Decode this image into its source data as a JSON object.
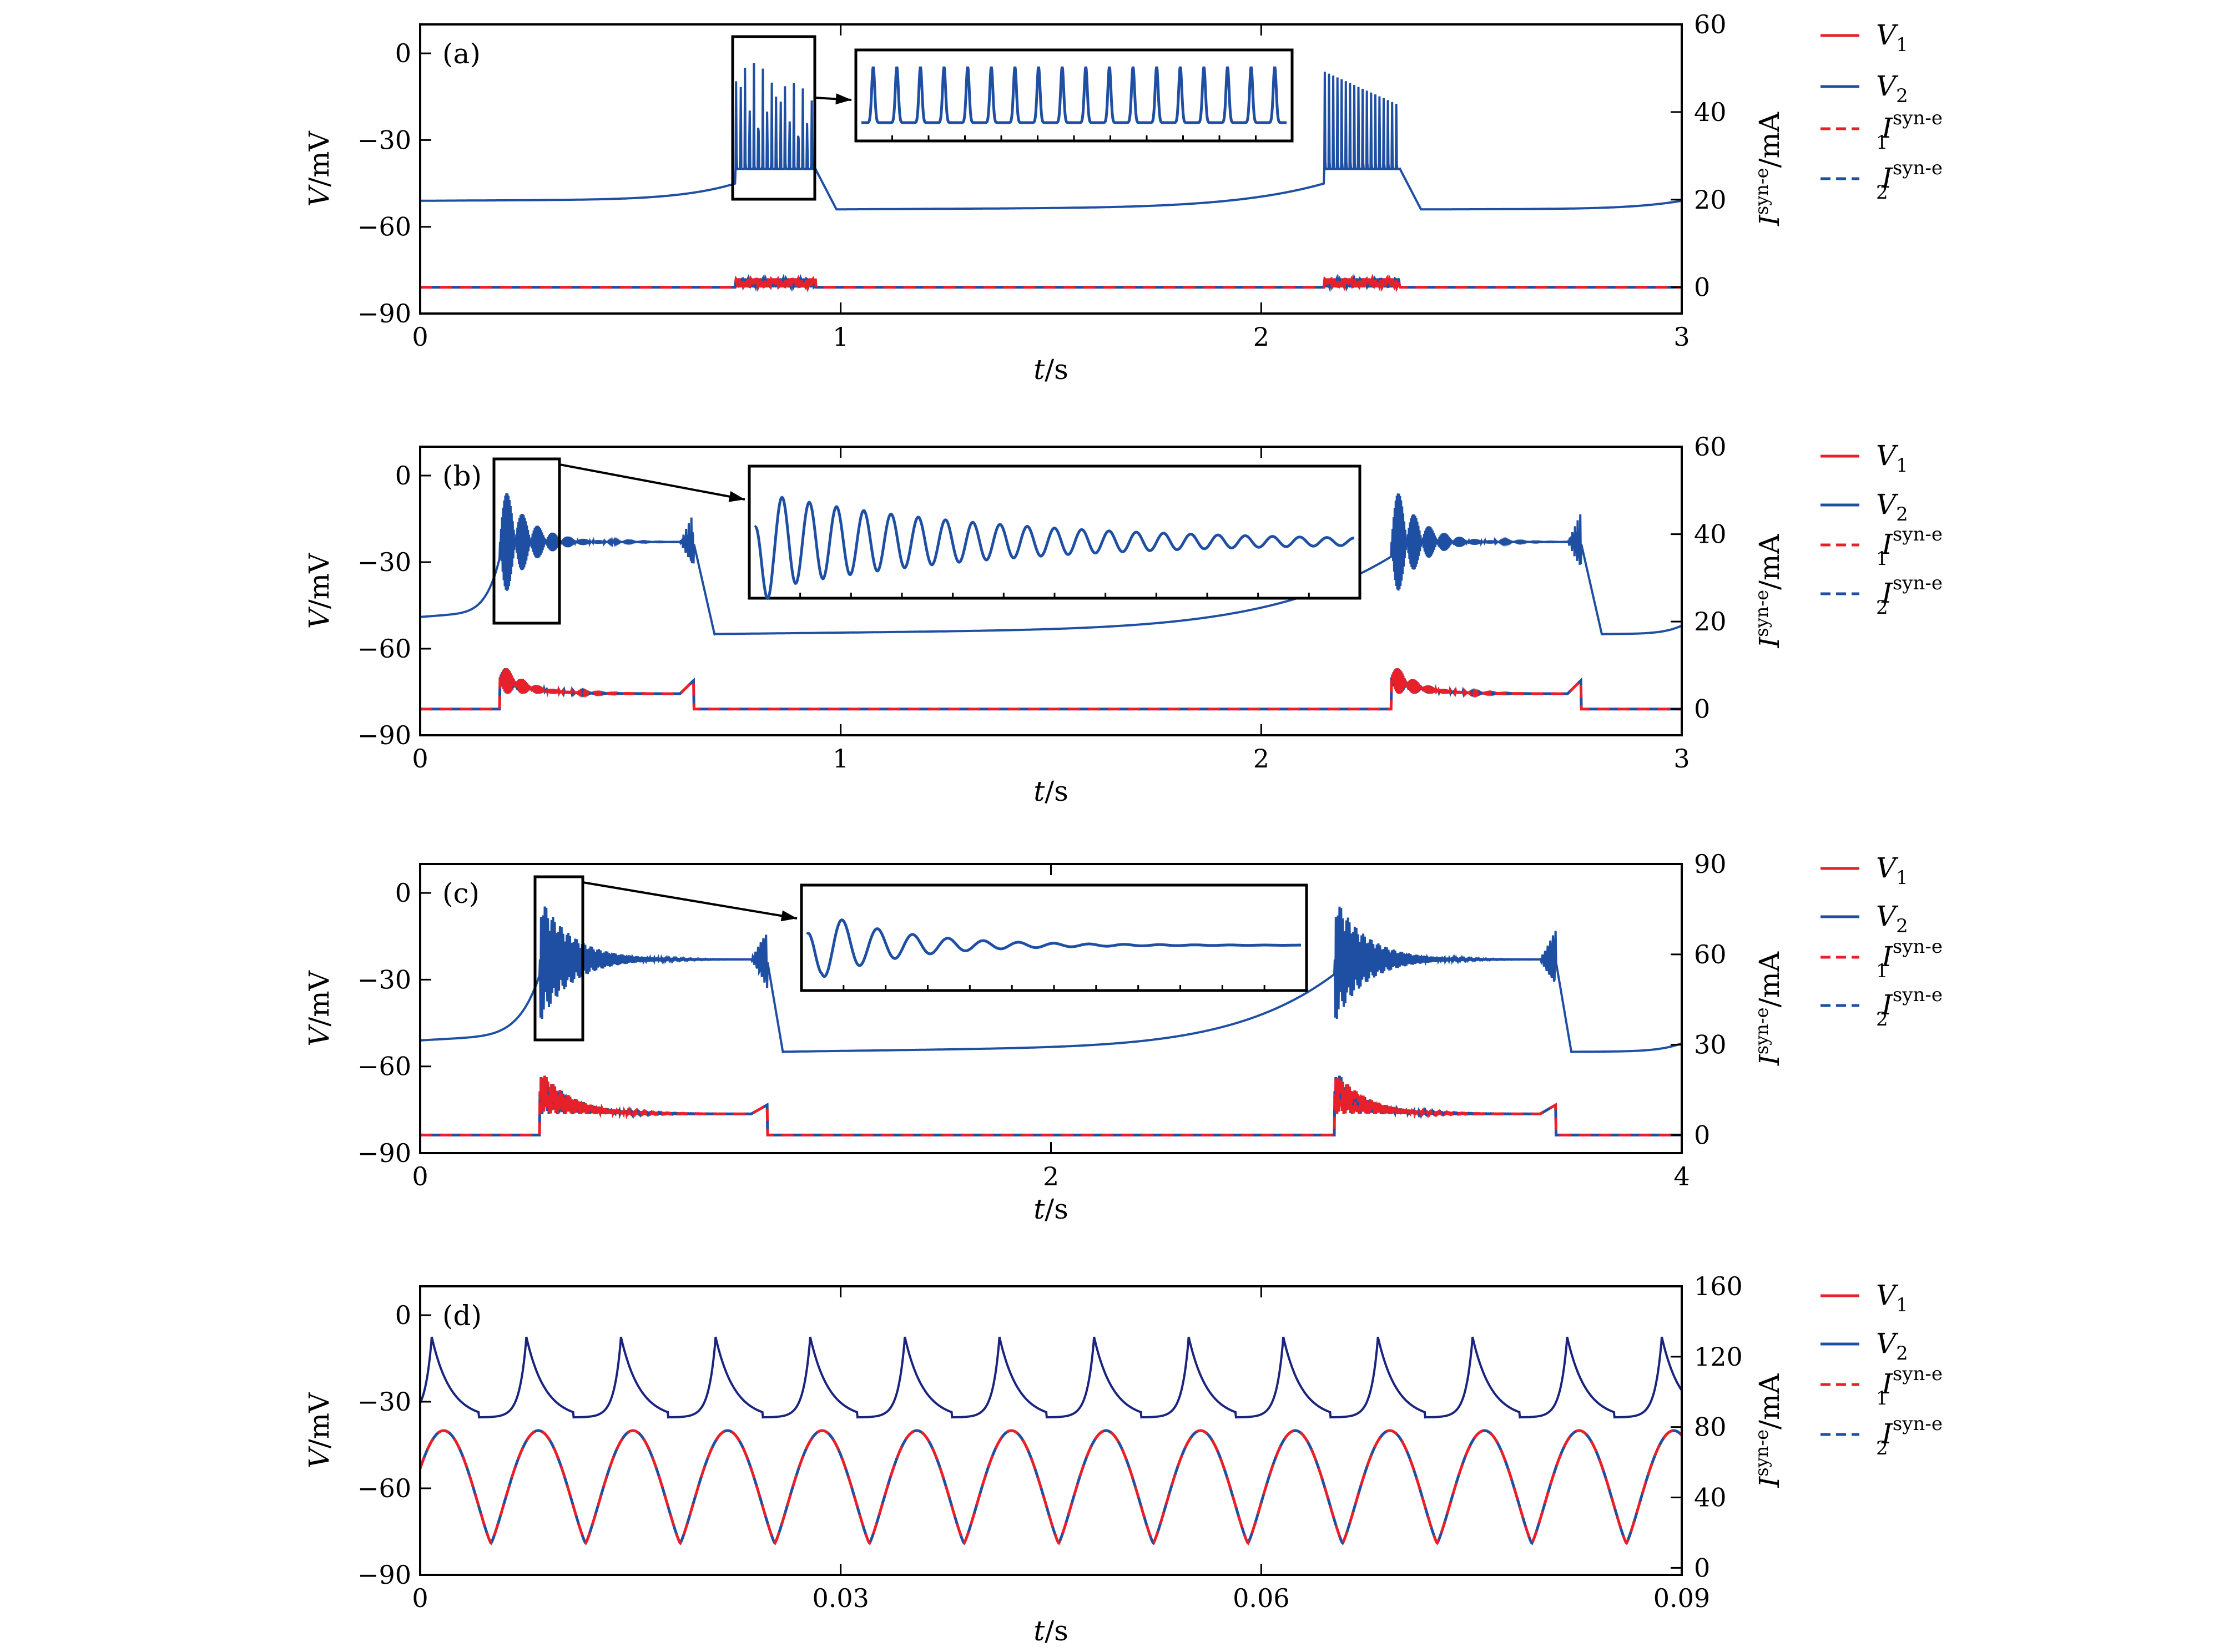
{
  "colors": {
    "v1": "#e8202a",
    "v2": "#1f4fa3",
    "v2_dark": "#1a237e",
    "i1": "#e8202a",
    "i2": "#1f4fa3"
  },
  "legend": [
    {
      "base": "V",
      "sub": "1",
      "sup": "",
      "style": "solid",
      "color_key": "v1"
    },
    {
      "base": "V",
      "sub": "2",
      "sup": "",
      "style": "solid",
      "color_key": "v2"
    },
    {
      "base": "I",
      "sub": "1",
      "sup": "syn-e",
      "style": "dashed",
      "color_key": "i1"
    },
    {
      "base": "I",
      "sub": "2",
      "sup": "syn-e",
      "style": "dashed",
      "color_key": "i2"
    }
  ],
  "chart_data": [
    {
      "panel": "(a)",
      "type": "line",
      "xlabel": "t/s",
      "ylabel_left": "V/mV",
      "ylabel_right": "I^syn-e/mA",
      "xlim": [
        0,
        3
      ],
      "xticks": [
        "0",
        "1",
        "2",
        "3"
      ],
      "ylim_left": [
        -90,
        10
      ],
      "yticks_left": [
        "0",
        "−30",
        "−60",
        "−90"
      ],
      "ylim_right": [
        -6,
        60
      ],
      "yticks_right": [
        "0",
        "20",
        "40",
        "60"
      ],
      "bursts": [
        [
          0.75,
          0.94
        ],
        [
          2.15,
          2.33
        ]
      ],
      "burst_spike_count": 18,
      "burst_plateau_mV": -40,
      "rest_start_mV": -51,
      "rest_after_mV": -54,
      "current_burst_peak_mA": 2,
      "inset": {
        "kind": "spikes",
        "count": 18
      }
    },
    {
      "panel": "(b)",
      "type": "line",
      "xlabel": "t/s",
      "ylabel_left": "V/mV",
      "ylabel_right": "I^syn-e/mA",
      "xlim": [
        0,
        3
      ],
      "xticks": [
        "0",
        "1",
        "2",
        "3"
      ],
      "ylim_left": [
        -90,
        10
      ],
      "yticks_left": [
        "0",
        "−30",
        "−60",
        "−90"
      ],
      "ylim_right": [
        -6,
        60
      ],
      "yticks_right": [
        "0",
        "20",
        "40",
        "60"
      ],
      "bursts": [
        [
          0.19,
          0.65
        ],
        [
          2.31,
          2.76
        ]
      ],
      "burst_plateau_mV": -23,
      "rest_start_mV": -49,
      "rest_after_mV": -55,
      "current_burst_peak_mA": 11,
      "current_plateau_mA": 3.5,
      "inset": {
        "kind": "damped",
        "count": 22
      }
    },
    {
      "panel": "(c)",
      "type": "line",
      "xlabel": "t/s",
      "ylabel_left": "V/mV",
      "ylabel_right": "I^syn-e/mA",
      "xlim": [
        0,
        4
      ],
      "xticks": [
        "0",
        "2",
        "4"
      ],
      "ylim_left": [
        -90,
        10
      ],
      "yticks_left": [
        "0",
        "−30",
        "−60",
        "−90"
      ],
      "ylim_right": [
        -6,
        90
      ],
      "yticks_right": [
        "0",
        "30",
        "60",
        "90"
      ],
      "bursts": [
        [
          0.38,
          1.1
        ],
        [
          2.9,
          3.6
        ]
      ],
      "burst_plateau_mV": -23,
      "rest_start_mV": -51,
      "rest_after_mV": -55,
      "current_burst_peak_mA": 22,
      "current_plateau_mA": 7,
      "inset": {
        "kind": "damped",
        "count": 14
      }
    },
    {
      "panel": "(d)",
      "type": "line",
      "xlabel": "t/s",
      "ylabel_left": "V/mV",
      "ylabel_right": "I^syn-e/mA",
      "xlim": [
        0,
        0.09
      ],
      "xticks": [
        "0",
        "0.03",
        "0.06",
        "0.09"
      ],
      "ylim_left": [
        -90,
        10
      ],
      "yticks_left": [
        "0",
        "−30",
        "−60",
        "−90"
      ],
      "ylim_right": [
        -4,
        160
      ],
      "yticks_right": [
        "0",
        "40",
        "80",
        "120",
        "160"
      ],
      "period_s": 0.00675,
      "first_peak_s": 0.0008,
      "v_peak_mV": -7,
      "v_trough_mV": -36,
      "i_peak_mA": 78,
      "i_trough_mA": 14
    }
  ]
}
